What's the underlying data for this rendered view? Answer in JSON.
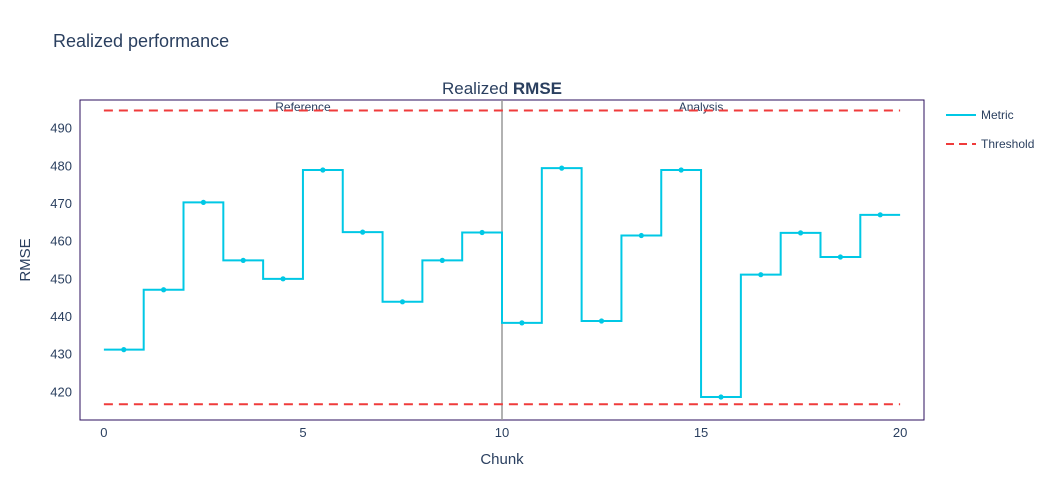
{
  "page": {
    "title": "Realized performance"
  },
  "chart_data": {
    "type": "line",
    "title_prefix": "Realized ",
    "title_bold": "RMSE",
    "xlabel": "Chunk",
    "ylabel": "RMSE",
    "xlim": [
      -0.6,
      20.6
    ],
    "ylim": [
      412.5,
      497.5
    ],
    "xticks": [
      0,
      5,
      10,
      15,
      20
    ],
    "yticks": [
      420,
      430,
      440,
      450,
      460,
      470,
      480,
      490
    ],
    "grid": false,
    "legend_position": "right",
    "periods": [
      {
        "label": "Reference",
        "start": 0,
        "end": 10
      },
      {
        "label": "Analysis",
        "start": 10,
        "end": 20
      }
    ],
    "divider_x": 10,
    "series": [
      {
        "name": "Metric",
        "color": "#00c8e5",
        "style": "step",
        "chunk_edges": [
          0,
          1,
          2,
          3,
          4,
          5,
          6,
          7,
          8,
          9,
          10,
          11,
          12,
          13,
          14,
          15,
          16,
          17,
          18,
          19,
          20
        ],
        "values": [
          431.2,
          447.1,
          470.3,
          454.9,
          450.0,
          478.9,
          462.4,
          443.9,
          454.9,
          462.3,
          438.3,
          479.4,
          438.8,
          461.5,
          478.9,
          418.6,
          451.1,
          462.2,
          455.8,
          467.0
        ]
      },
      {
        "name": "Threshold",
        "color": "#ef3b3b",
        "style": "dashed",
        "levels": [
          494.7,
          416.7
        ]
      }
    ]
  }
}
